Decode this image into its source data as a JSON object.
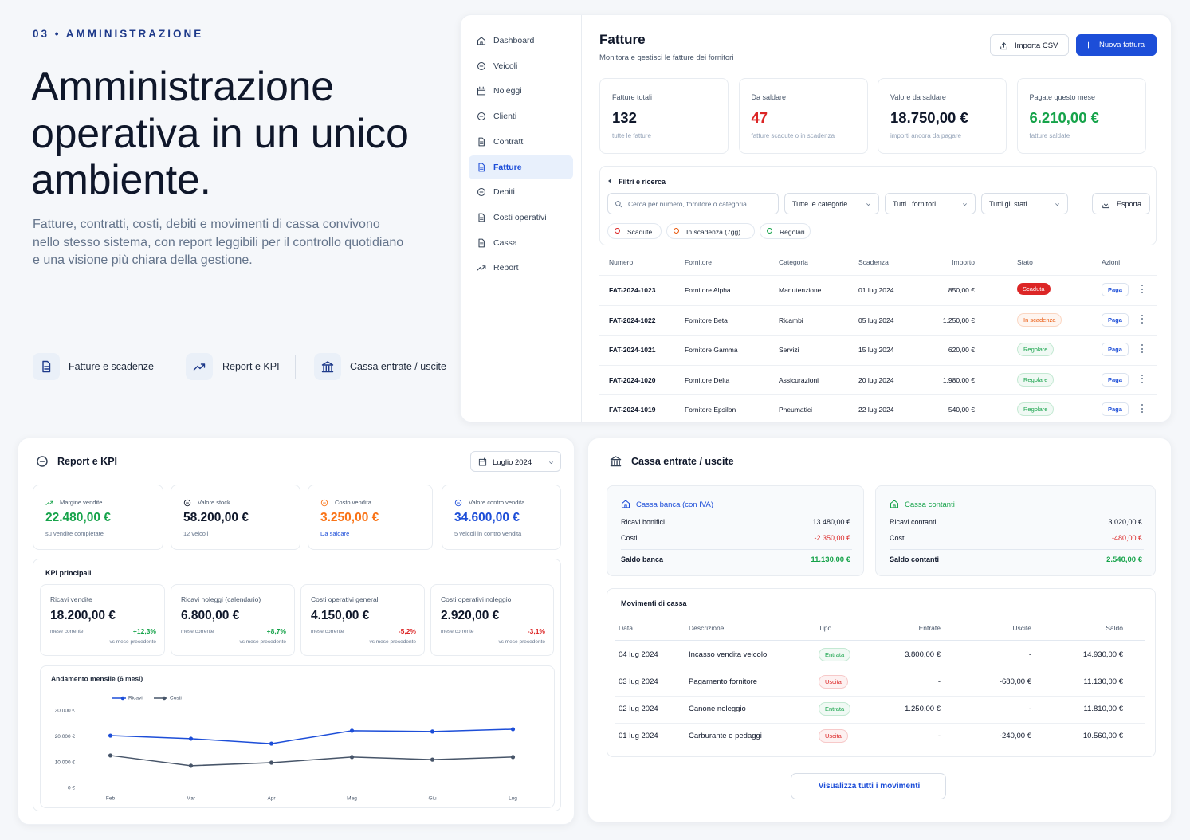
{
  "hero": {
    "kicker": "03 • AMMINISTRAZIONE",
    "title_lines": [
      "Amministrazione",
      "operativa in un unico",
      "ambiente."
    ],
    "description": "Fatture, contratti, costi, debiti e movimenti di cassa convivono nello stesso sistema, con report leggibili per il controllo quotidiano e una visione più chiara della gestione.",
    "features": [
      "Fatture e scadenze",
      "Report e KPI",
      "Cassa entrate / uscite"
    ]
  },
  "sidebar": {
    "items": [
      {
        "label": "Dashboard"
      },
      {
        "label": "Veicoli"
      },
      {
        "label": "Noleggi"
      },
      {
        "label": "Clienti"
      },
      {
        "label": "Contratti"
      },
      {
        "label": "Fatture",
        "selected": true
      },
      {
        "label": "Debiti"
      },
      {
        "label": "Costi operativi"
      },
      {
        "label": "Cassa"
      },
      {
        "label": "Report"
      }
    ]
  },
  "invoices": {
    "title": "Fatture",
    "subtitle": "Monitora e gestisci le fatture dei fornitori",
    "import_button": "Importa CSV",
    "new_button": "Nuova fattura",
    "stats": [
      {
        "label": "Fatture totali",
        "value": "132",
        "note": "tutte le fatture",
        "color": "#0f172a"
      },
      {
        "label": "Da saldare",
        "value": "47",
        "note": "fatture scadute o in scadenza",
        "color": "#dc2626"
      },
      {
        "label": "Valore da saldare",
        "value": "18.750,00 €",
        "note": "importi ancora da pagare",
        "color": "#0f172a"
      },
      {
        "label": "Pagate questo mese",
        "value": "6.210,00 €",
        "note": "fatture saldate",
        "color": "#16a34a"
      }
    ],
    "filters": {
      "title": "Filtri e ricerca",
      "search_placeholder": "Cerca per numero, fornitore o categoria...",
      "selects": [
        "Tutte le categorie",
        "Tutti i fornitori",
        "Tutti gli stati"
      ],
      "export": "Esporta",
      "chips": [
        {
          "label": "Scadute",
          "color": "#dc2626"
        },
        {
          "label": "In scadenza (7gg)",
          "color": "#ea580c"
        },
        {
          "label": "Regolari",
          "color": "#16a34a"
        }
      ]
    },
    "table": {
      "columns": [
        "Numero",
        "Fornitore",
        "Categoria",
        "Scadenza",
        "Importo",
        "Stato",
        "Azioni"
      ],
      "rows": [
        {
          "number": "FAT-2024-1023",
          "supplier": "Fornitore Alpha",
          "category": "Manutenzione",
          "due": "01 lug 2024",
          "amount": "850,00 €",
          "status": "Scaduta",
          "status_color": "#dc2626",
          "status_solid": true,
          "action": "Paga"
        },
        {
          "number": "FAT-2024-1022",
          "supplier": "Fornitore Beta",
          "category": "Ricambi",
          "due": "05 lug 2024",
          "amount": "1.250,00 €",
          "status": "In scadenza",
          "status_color": "#ea580c",
          "action": "Paga"
        },
        {
          "number": "FAT-2024-1021",
          "supplier": "Fornitore Gamma",
          "category": "Servizi",
          "due": "15 lug 2024",
          "amount": "620,00 €",
          "status": "Regolare",
          "status_color": "#16a34a",
          "action": "Paga"
        },
        {
          "number": "FAT-2024-1020",
          "supplier": "Fornitore Delta",
          "category": "Assicurazioni",
          "due": "20 lug 2024",
          "amount": "1.980,00 €",
          "status": "Regolare",
          "status_color": "#16a34a",
          "action": "Paga"
        },
        {
          "number": "FAT-2024-1019",
          "supplier": "Fornitore Epsilon",
          "category": "Pneumatici",
          "due": "22 lug 2024",
          "amount": "540,00 €",
          "status": "Regolare",
          "status_color": "#16a34a",
          "action": "Paga"
        }
      ]
    }
  },
  "report": {
    "title": "Report e KPI",
    "period": "Luglio 2024",
    "cards": [
      {
        "label": "Margine vendite",
        "value": "22.480,00 €",
        "note": "su vendite completate",
        "color": "#16a34a",
        "note_color": "#64748b"
      },
      {
        "label": "Valore stock",
        "value": "58.200,00 €",
        "note": "12 veicoli",
        "color": "#0f172a",
        "note_color": "#64748b"
      },
      {
        "label": "Costo vendita",
        "value": "3.250,00 €",
        "note": "Da saldare",
        "color": "#f97316",
        "note_color": "#1d4ed8"
      },
      {
        "label": "Valore contro vendita",
        "value": "34.600,00 €",
        "note": "5 veicoli in contro vendita",
        "color": "#1d4ed8",
        "note_color": "#64748b"
      }
    ],
    "kpi_title": "KPI principali",
    "kpis": [
      {
        "label": "Ricavi vendite",
        "value": "18.200,00 €",
        "period": "mese corrente",
        "change": "+12,3%",
        "change_color": "#16a34a",
        "compare": "vs mese precedente"
      },
      {
        "label": "Ricavi noleggi (calendario)",
        "value": "6.800,00 €",
        "period": "mese corrente",
        "change": "+8,7%",
        "change_color": "#16a34a",
        "compare": "vs mese precedente"
      },
      {
        "label": "Costi operativi generali",
        "value": "4.150,00 €",
        "period": "mese corrente",
        "change": "-5,2%",
        "change_color": "#dc2626",
        "compare": "vs mese precedente"
      },
      {
        "label": "Costi operativi noleggio",
        "value": "2.920,00 €",
        "period": "mese corrente",
        "change": "-3,1%",
        "change_color": "#dc2626",
        "compare": "vs mese precedente"
      }
    ]
  },
  "chart_data": {
    "type": "line",
    "title": "Andamento mensile (6 mesi)",
    "categories": [
      "Feb",
      "Mar",
      "Apr",
      "Mag",
      "Giu",
      "Lug"
    ],
    "series": [
      {
        "name": "Ricavi",
        "color": "#1d4ed8",
        "values": [
          20400,
          19200,
          17300,
          22300,
          22000,
          22900
        ]
      },
      {
        "name": "Costi",
        "color": "#475569",
        "values": [
          12700,
          8700,
          9900,
          12100,
          11100,
          12100
        ]
      }
    ],
    "ylim": [
      0,
      30000
    ],
    "yticks": [
      {
        "value": 0,
        "label": "0 €"
      },
      {
        "value": 10000,
        "label": "10.000 €"
      },
      {
        "value": 20000,
        "label": "20.000 €"
      },
      {
        "value": 30000,
        "label": "30.000 €"
      }
    ],
    "grid": false
  },
  "cash": {
    "title": "Cassa entrate / uscite",
    "boxes": [
      {
        "title": "Cassa banca (con IVA)",
        "color": "#1d4ed8",
        "rows": [
          {
            "label": "Ricavi bonifici",
            "value": "13.480,00 €",
            "color": "#0f172a"
          },
          {
            "label": "Costi",
            "value": "-2.350,00 €",
            "color": "#dc2626"
          }
        ],
        "total_label": "Saldo banca",
        "total_value": "11.130,00 €"
      },
      {
        "title": "Cassa contanti",
        "color": "#16a34a",
        "rows": [
          {
            "label": "Ricavi contanti",
            "value": "3.020,00 €",
            "color": "#0f172a"
          },
          {
            "label": "Costi",
            "value": "-480,00 €",
            "color": "#dc2626"
          }
        ],
        "total_label": "Saldo contanti",
        "total_value": "2.540,00 €"
      }
    ],
    "movements": {
      "title": "Movimenti di cassa",
      "columns": [
        "Data",
        "Descrizione",
        "Tipo",
        "Entrate",
        "Uscite",
        "Saldo"
      ],
      "rows": [
        {
          "date": "04 lug 2024",
          "description": "Incasso vendita veicolo",
          "type": "Entrata",
          "type_color": "#16a34a",
          "income": "3.800,00 €",
          "expense": "-",
          "balance": "14.930,00 €"
        },
        {
          "date": "03 lug 2024",
          "description": "Pagamento fornitore",
          "type": "Uscita",
          "type_color": "#dc2626",
          "income": "-",
          "expense": "-680,00 €",
          "balance": "11.130,00 €"
        },
        {
          "date": "02 lug 2024",
          "description": "Canone noleggio",
          "type": "Entrata",
          "type_color": "#16a34a",
          "income": "1.250,00 €",
          "expense": "-",
          "balance": "11.810,00 €"
        },
        {
          "date": "01 lug 2024",
          "description": "Carburante e pedaggi",
          "type": "Uscita",
          "type_color": "#dc2626",
          "income": "-",
          "expense": "-240,00 €",
          "balance": "10.560,00 €"
        }
      ]
    },
    "button": "Visualizza tutti i movimenti"
  }
}
